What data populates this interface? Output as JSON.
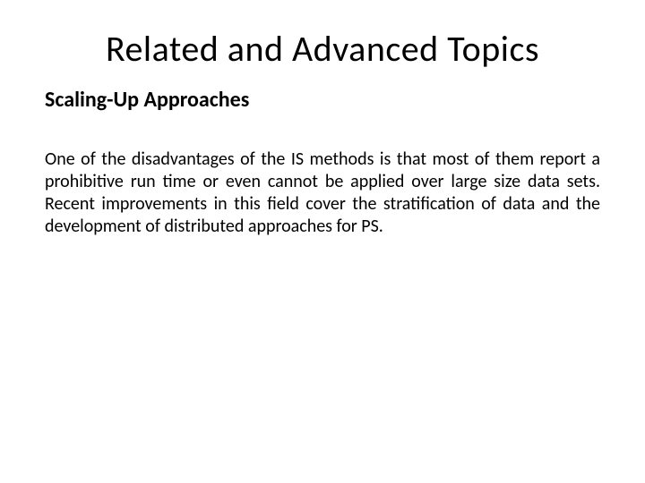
{
  "slide": {
    "title": "Related and Advanced Topics",
    "subtitle": "Scaling-Up Approaches",
    "body": "One of the disadvantages of the IS methods is that most of them report a prohibitive run time or even cannot be applied over large size data sets. Recent improvements in this field cover the stratification of data and the development of distributed approaches for PS.",
    "background_color": "#ffffff",
    "text_color": "#000000",
    "title_fontsize": 40,
    "subtitle_fontsize": 24,
    "body_fontsize": 20,
    "font_family": "Calibri"
  }
}
